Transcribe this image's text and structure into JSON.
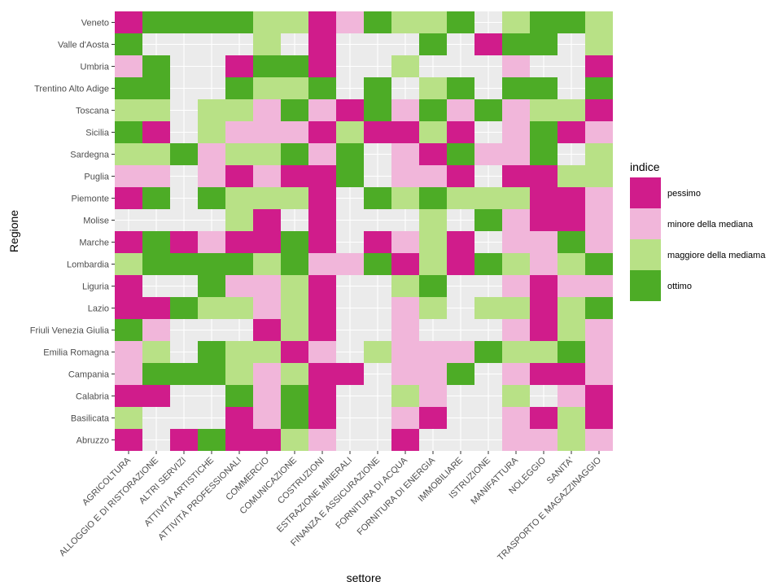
{
  "chart_data": {
    "type": "heatmap",
    "xlabel": "settore",
    "ylabel": "Regione",
    "legend_title": "indice",
    "legend_position": "right",
    "grid": true,
    "colors": {
      "pessimo": "#d01c8b",
      "minore della mediana": "#f1b6da",
      "maggiore della mediama": "#b8e186",
      "ottimo": "#4dac26",
      "panel": "#ebebeb",
      "grid": "#ffffff"
    },
    "legend": [
      {
        "key": "P",
        "label": "pessimo"
      },
      {
        "key": "L",
        "label": "minore della mediana"
      },
      {
        "key": "G",
        "label": "maggiore della mediama"
      },
      {
        "key": "O",
        "label": "ottimo"
      }
    ],
    "x": [
      "AGRICOLTURA",
      "ALLOGGIO E DI RISTORAZIONE",
      "ALTRI SERVIZI",
      "ATTIVITÀ ARTISTICHE",
      "ATTIVITÀ PROFESSIONALI",
      "COMMERCIO",
      "COMUNICAZIONE",
      "COSTRUZIONI",
      "ESTRAZIONE MINERALI",
      "FINANZA E ASSICURAZIONE",
      "FORNITURA DI ACQUA",
      "FORNITURA DI ENERGIA",
      "IMMOBILIARE",
      "ISTRUZIONE",
      "MANIFATTURA",
      "NOLEGGIO",
      "SANITA'",
      "TRASPORTO E MAGAZZINAGGIO"
    ],
    "y": [
      "Veneto",
      "Valle d'Aosta",
      "Umbria",
      "Trentino Alto Adige",
      "Toscana",
      "Sicilia",
      "Sardegna",
      "Puglia",
      "Piemonte",
      "Molise",
      "Marche",
      "Lombardia",
      "Liguria",
      "Lazio",
      "Friuli Venezia Giulia",
      "Emilia Romagna",
      "Campania",
      "Calabria",
      "Basilicata",
      "Abruzzo"
    ],
    "cells": [
      [
        "P",
        "O",
        "O",
        "O",
        "O",
        "G",
        "G",
        "P",
        "L",
        "O",
        "G",
        "G",
        "O",
        "",
        "G",
        "O",
        "O",
        "G"
      ],
      [
        "O",
        "",
        "",
        "",
        "",
        "G",
        "",
        "P",
        "",
        "",
        "",
        "O",
        "",
        "P",
        "O",
        "O",
        "",
        "G"
      ],
      [
        "L",
        "O",
        "",
        "",
        "P",
        "O",
        "O",
        "P",
        "",
        "",
        "G",
        "",
        "",
        "",
        "L",
        "",
        "",
        "P"
      ],
      [
        "O",
        "O",
        "",
        "",
        "O",
        "G",
        "G",
        "O",
        "",
        "O",
        "",
        "G",
        "O",
        "",
        "O",
        "O",
        "",
        "O"
      ],
      [
        "G",
        "G",
        "",
        "G",
        "G",
        "L",
        "O",
        "L",
        "P",
        "O",
        "L",
        "O",
        "L",
        "O",
        "L",
        "G",
        "G",
        "P"
      ],
      [
        "O",
        "P",
        "",
        "G",
        "L",
        "L",
        "L",
        "P",
        "G",
        "P",
        "P",
        "G",
        "P",
        "",
        "L",
        "O",
        "P",
        "L"
      ],
      [
        "G",
        "G",
        "O",
        "L",
        "G",
        "G",
        "O",
        "L",
        "O",
        "",
        "L",
        "P",
        "O",
        "L",
        "L",
        "O",
        "",
        "G"
      ],
      [
        "L",
        "L",
        "",
        "L",
        "P",
        "L",
        "P",
        "P",
        "O",
        "",
        "L",
        "L",
        "P",
        "",
        "P",
        "P",
        "G",
        "G"
      ],
      [
        "P",
        "O",
        "",
        "O",
        "G",
        "G",
        "G",
        "P",
        "",
        "O",
        "G",
        "O",
        "G",
        "G",
        "G",
        "P",
        "P",
        "L"
      ],
      [
        "",
        "",
        "",
        "",
        "G",
        "P",
        "",
        "P",
        "",
        "",
        "",
        "G",
        "",
        "O",
        "L",
        "P",
        "P",
        "L"
      ],
      [
        "P",
        "O",
        "P",
        "L",
        "P",
        "P",
        "O",
        "P",
        "",
        "P",
        "L",
        "G",
        "P",
        "",
        "L",
        "L",
        "O",
        "L"
      ],
      [
        "G",
        "O",
        "O",
        "O",
        "O",
        "G",
        "O",
        "L",
        "L",
        "O",
        "P",
        "G",
        "P",
        "O",
        "G",
        "L",
        "G",
        "O"
      ],
      [
        "P",
        "",
        "",
        "O",
        "L",
        "L",
        "G",
        "P",
        "",
        "",
        "G",
        "O",
        "",
        "",
        "L",
        "P",
        "L",
        "L"
      ],
      [
        "P",
        "P",
        "O",
        "G",
        "G",
        "L",
        "G",
        "P",
        "",
        "",
        "L",
        "G",
        "",
        "G",
        "G",
        "P",
        "G",
        "O"
      ],
      [
        "O",
        "L",
        "",
        "",
        "",
        "P",
        "G",
        "P",
        "",
        "",
        "L",
        "",
        "",
        "",
        "L",
        "P",
        "G",
        "L"
      ],
      [
        "L",
        "G",
        "",
        "O",
        "G",
        "G",
        "P",
        "L",
        "",
        "G",
        "L",
        "L",
        "L",
        "O",
        "G",
        "G",
        "O",
        "L"
      ],
      [
        "L",
        "O",
        "O",
        "O",
        "G",
        "L",
        "G",
        "P",
        "P",
        "",
        "L",
        "L",
        "O",
        "",
        "L",
        "P",
        "P",
        "L"
      ],
      [
        "P",
        "P",
        "",
        "",
        "O",
        "L",
        "O",
        "P",
        "",
        "",
        "G",
        "L",
        "",
        "",
        "G",
        "",
        "L",
        "P"
      ],
      [
        "G",
        "",
        "",
        "",
        "P",
        "L",
        "O",
        "P",
        "",
        "",
        "L",
        "P",
        "",
        "",
        "L",
        "P",
        "G",
        "P"
      ],
      [
        "P",
        "",
        "P",
        "O",
        "P",
        "P",
        "G",
        "L",
        "",
        "",
        "P",
        "",
        "",
        "",
        "L",
        "L",
        "G",
        "L"
      ]
    ]
  }
}
